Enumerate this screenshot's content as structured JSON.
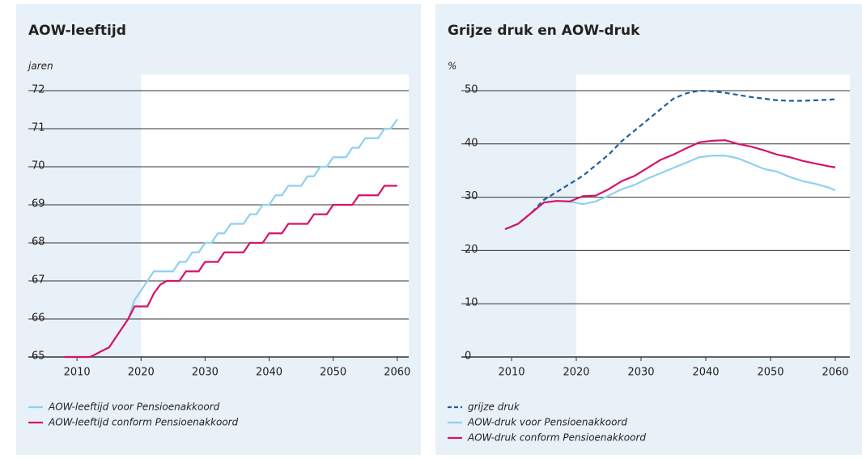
{
  "chart_data": [
    {
      "type": "line",
      "title": "AOW-leeftijd",
      "ylabel": "jaren",
      "x": [
        2008,
        2009,
        2010,
        2011,
        2012,
        2013,
        2014,
        2015,
        2016,
        2017,
        2018,
        2019,
        2020,
        2021,
        2022,
        2023,
        2024,
        2025,
        2026,
        2027,
        2028,
        2029,
        2030,
        2031,
        2032,
        2033,
        2034,
        2035,
        2036,
        2037,
        2038,
        2039,
        2040,
        2041,
        2042,
        2043,
        2044,
        2045,
        2046,
        2047,
        2048,
        2049,
        2050,
        2051,
        2052,
        2053,
        2054,
        2055,
        2056,
        2057,
        2058,
        2059,
        2060
      ],
      "series": [
        {
          "name": "AOW-leeftijd voor Pensioenakkoord",
          "color": "#8fd0f0",
          "values": [
            65,
            65,
            65,
            65,
            65,
            65.08,
            65.17,
            65.25,
            65.5,
            65.75,
            66,
            66.5,
            66.75,
            67,
            67.25,
            67.25,
            67.25,
            67.25,
            67.5,
            67.5,
            67.75,
            67.75,
            68,
            68,
            68.25,
            68.25,
            68.5,
            68.5,
            68.5,
            68.75,
            68.75,
            69,
            69,
            69.25,
            69.25,
            69.5,
            69.5,
            69.5,
            69.75,
            69.75,
            70,
            70,
            70.25,
            70.25,
            70.25,
            70.5,
            70.5,
            70.75,
            70.75,
            70.75,
            71,
            71,
            71.25
          ]
        },
        {
          "name": "AOW-leeftijd conform Pensioenakkoord",
          "color": "#d8126a",
          "values": [
            65,
            65,
            65,
            65,
            65,
            65.08,
            65.17,
            65.25,
            65.5,
            65.75,
            66,
            66.33,
            66.33,
            66.33,
            66.67,
            66.9,
            67,
            67,
            67,
            67.25,
            67.25,
            67.25,
            67.5,
            67.5,
            67.5,
            67.75,
            67.75,
            67.75,
            67.75,
            68,
            68,
            68,
            68.25,
            68.25,
            68.25,
            68.5,
            68.5,
            68.5,
            68.5,
            68.75,
            68.75,
            68.75,
            69,
            69,
            69,
            69,
            69.25,
            69.25,
            69.25,
            69.25,
            69.5,
            69.5,
            69.5
          ]
        }
      ],
      "xlim": [
        2002.4,
        2061.8
      ],
      "xticks": [
        2010,
        2020,
        2030,
        2040,
        2050,
        2060
      ],
      "ylim": [
        65,
        72
      ],
      "yticks": [
        65,
        66,
        67,
        68,
        69,
        70,
        71,
        72
      ],
      "shaded_before": 2020,
      "grid": true
    },
    {
      "type": "line",
      "title": "Grijze druk en AOW-druk",
      "ylabel": "%",
      "x": [
        2009,
        2011,
        2013,
        2015,
        2017,
        2019,
        2021,
        2023,
        2025,
        2027,
        2029,
        2031,
        2033,
        2035,
        2037,
        2039,
        2041,
        2043,
        2045,
        2047,
        2049,
        2051,
        2053,
        2055,
        2057,
        2059,
        2060
      ],
      "series": [
        {
          "name": "grijze druk",
          "color": "#1d5fa0",
          "dash": true,
          "values": [
            24,
            25,
            27,
            29.5,
            31,
            32.5,
            34,
            36,
            38,
            40.5,
            42.5,
            44.5,
            46.5,
            48.5,
            49.5,
            50,
            49.9,
            49.6,
            49.2,
            48.8,
            48.5,
            48.2,
            48.1,
            48.1,
            48.2,
            48.3,
            48.4
          ]
        },
        {
          "name": "AOW-druk voor Pensioenakkoord",
          "color": "#8fd0f0",
          "values": [
            24,
            25,
            27,
            29,
            29.3,
            29.2,
            28.7,
            29.2,
            30.3,
            31.5,
            32.3,
            33.5,
            34.5,
            35.5,
            36.5,
            37.5,
            37.8,
            37.8,
            37.3,
            36.3,
            35.3,
            34.8,
            33.8,
            33,
            32.5,
            31.8,
            31.3
          ]
        },
        {
          "name": "AOW-druk conform Pensioenakkoord",
          "color": "#d8126a",
          "values": [
            24,
            25,
            27,
            29,
            29.3,
            29.2,
            30.2,
            30.3,
            31.5,
            33,
            34,
            35.5,
            37,
            38,
            39.2,
            40.3,
            40.6,
            40.7,
            40,
            39.5,
            38.8,
            38,
            37.5,
            36.8,
            36.3,
            35.8,
            35.6
          ]
        }
      ],
      "xlim": [
        2002.25,
        2062.25
      ],
      "xticks": [
        2010,
        2020,
        2030,
        2040,
        2050,
        2060
      ],
      "ylim": [
        0,
        50
      ],
      "yticks": [
        0,
        10,
        20,
        30,
        40,
        50
      ],
      "shaded_before": 2020,
      "grid": true
    }
  ]
}
